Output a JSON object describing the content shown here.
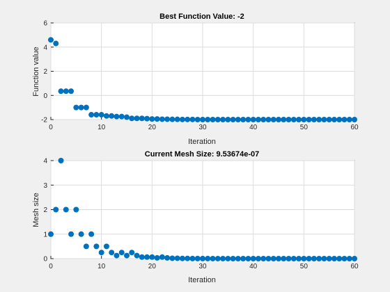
{
  "chart_data": [
    {
      "type": "scatter",
      "title": "Best Function Value: -2",
      "xlabel": "Iteration",
      "ylabel": "Function value",
      "xlim": [
        0,
        60
      ],
      "ylim": [
        -2,
        6
      ],
      "xticks": [
        0,
        10,
        20,
        30,
        40,
        50,
        60
      ],
      "yticks": [
        -2,
        0,
        2,
        4,
        6
      ],
      "grid": true,
      "marker_color": "#0072bd",
      "series": [
        {
          "x": [
            0,
            1,
            2,
            3,
            4,
            5,
            6,
            7,
            8,
            9,
            10,
            11,
            12,
            13,
            14,
            15,
            16,
            17,
            18,
            19,
            20,
            21,
            22,
            23,
            24,
            25,
            26,
            27,
            28,
            29,
            30,
            31,
            32,
            33,
            34,
            35,
            36,
            37,
            38,
            39,
            40,
            41,
            42,
            43,
            44,
            45,
            46,
            47,
            48,
            49,
            50,
            51,
            52,
            53,
            54,
            55,
            56,
            57,
            58,
            59,
            60
          ],
          "y": [
            4.6,
            4.3,
            0.35,
            0.35,
            0.35,
            -1.0,
            -1.0,
            -1.0,
            -1.6,
            -1.6,
            -1.6,
            -1.7,
            -1.7,
            -1.75,
            -1.75,
            -1.8,
            -1.9,
            -1.9,
            -1.9,
            -1.92,
            -1.95,
            -1.95,
            -1.97,
            -1.97,
            -1.98,
            -1.98,
            -1.99,
            -1.99,
            -1.99,
            -2,
            -2,
            -2,
            -2,
            -2,
            -2,
            -2,
            -2,
            -2,
            -2,
            -2,
            -2,
            -2,
            -2,
            -2,
            -2,
            -2,
            -2,
            -2,
            -2,
            -2,
            -2,
            -2,
            -2,
            -2,
            -2,
            -2,
            -2,
            -2,
            -2,
            -2,
            -2
          ]
        }
      ]
    },
    {
      "type": "scatter",
      "title": "Current Mesh Size: 9.53674e-07",
      "xlabel": "Iteration",
      "ylabel": "Mesh size",
      "xlim": [
        0,
        60
      ],
      "ylim": [
        0,
        4
      ],
      "xticks": [
        0,
        10,
        20,
        30,
        40,
        50,
        60
      ],
      "yticks": [
        0,
        1,
        2,
        3,
        4
      ],
      "grid": true,
      "marker_color": "#0072bd",
      "series": [
        {
          "x": [
            0,
            1,
            2,
            3,
            4,
            5,
            6,
            7,
            8,
            9,
            10,
            11,
            12,
            13,
            14,
            15,
            16,
            17,
            18,
            19,
            20,
            21,
            22,
            23,
            24,
            25,
            26,
            27,
            28,
            29,
            30,
            31,
            32,
            33,
            34,
            35,
            36,
            37,
            38,
            39,
            40,
            41,
            42,
            43,
            44,
            45,
            46,
            47,
            48,
            49,
            50,
            51,
            52,
            53,
            54,
            55,
            56,
            57,
            58,
            59,
            60
          ],
          "y": [
            1,
            2,
            4,
            2,
            1,
            2,
            1,
            0.5,
            1,
            0.5,
            0.25,
            0.5,
            0.25,
            0.125,
            0.25,
            0.125,
            0.25,
            0.125,
            0.0625,
            0.0625,
            0.0625,
            0.03125,
            0.0625,
            0.03125,
            0.015625,
            0.015625,
            0.0078,
            0.0078,
            0.0039,
            0.0039,
            0.002,
            0.002,
            0.001,
            0.001,
            0.0005,
            0.0005,
            0.0002,
            0.0002,
            0.0001,
            0.0001,
            5e-05,
            5e-05,
            2e-05,
            2e-05,
            1e-05,
            1e-05,
            5e-06,
            5e-06,
            2e-06,
            2e-06,
            1e-06,
            1e-06,
            1e-06,
            1e-06,
            1e-06,
            1e-06,
            1e-06,
            1e-06,
            1e-06,
            1e-06,
            1e-06
          ]
        }
      ]
    }
  ]
}
